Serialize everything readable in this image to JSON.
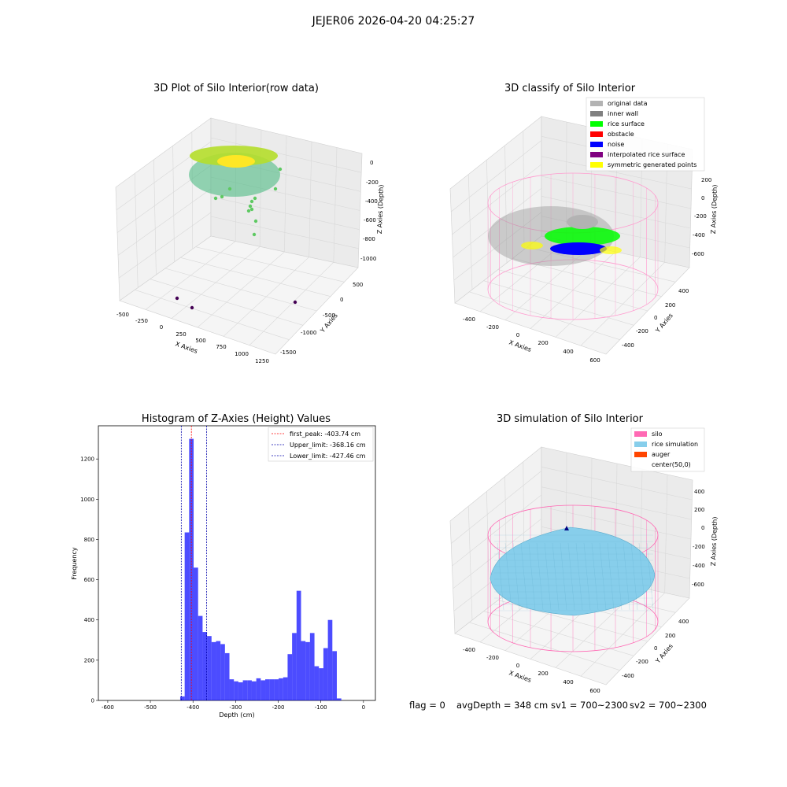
{
  "figure": {
    "suptitle": "JEJER06 2026-04-20 04:25:27",
    "status_line": {
      "flag": "flag = 0",
      "avg_depth": "avgDepth = 348 cm",
      "sv1": "sv1 = 700~2300",
      "sv2": "sv2 = 700~2300"
    }
  },
  "chart_data": [
    {
      "type": "scatter",
      "title": "3D Plot of Silo Interior(row data)",
      "xlabel": "X Axies",
      "ylabel": "Y Axies",
      "zlabel": "Z Axies (Depth)",
      "x_ticks": [
        "-500",
        "-250",
        "0",
        "250",
        "500",
        "750",
        "1000",
        "1250"
      ],
      "y_ticks": [
        "500",
        "0",
        "-500",
        "-1000",
        "-1500"
      ],
      "z_ticks": [
        "0",
        "-200",
        "-400",
        "-600",
        "-800",
        "-1000"
      ],
      "colormap": [
        "#440154",
        "#21918c",
        "#5ec962",
        "#fde725"
      ]
    },
    {
      "type": "scatter",
      "title": "3D classify of Silo Interior",
      "xlabel": "X Axies",
      "ylabel": "Y Axies",
      "zlabel": "Z Axies (Depth)",
      "x_ticks": [
        "-400",
        "-200",
        "0",
        "200",
        "400",
        "600"
      ],
      "y_ticks": [
        "400",
        "200",
        "0",
        "-200",
        "-400"
      ],
      "z_ticks": [
        "200",
        "0",
        "-200",
        "-400",
        "-600"
      ],
      "legend": [
        {
          "label": "original data",
          "color": "#b3b3b3"
        },
        {
          "label": "inner wall",
          "color": "#808080"
        },
        {
          "label": "rice surface",
          "color": "#00ff00"
        },
        {
          "label": "obstacle",
          "color": "#ff0000"
        },
        {
          "label": "noise",
          "color": "#0000ff"
        },
        {
          "label": "interpolated rice surface",
          "color": "#800080"
        },
        {
          "label": "symmetric generated points",
          "color": "#ffff00"
        }
      ]
    },
    {
      "type": "bar",
      "title": "Histogram of Z-Axies (Height) Values",
      "xlabel": "Depth (cm)",
      "ylabel": "Frequency",
      "xlim": [
        -622,
        28
      ],
      "ylim": [
        0,
        1365
      ],
      "x_ticks": [
        -600,
        -500,
        -400,
        -300,
        -200,
        -100,
        0
      ],
      "y_ticks": [
        0,
        200,
        400,
        600,
        800,
        1000,
        1200
      ],
      "bar_color": "#0000ff",
      "bin_edges_start": -430,
      "bin_width": 10.5,
      "values": [
        20,
        835,
        1300,
        660,
        420,
        340,
        320,
        290,
        295,
        280,
        235,
        105,
        95,
        90,
        100,
        100,
        95,
        110,
        100,
        105,
        105,
        105,
        110,
        115,
        230,
        335,
        545,
        295,
        290,
        335,
        170,
        160,
        260,
        400,
        245,
        10
      ],
      "vlines": [
        {
          "label": "first_peak: -403.74 cm",
          "x": -403.74,
          "color": "#ff0000"
        },
        {
          "label": "Upper_limit: -368.16 cm",
          "x": -368.16,
          "color": "#0000aa"
        },
        {
          "label": "Lower_limit: -427.46 cm",
          "x": -427.46,
          "color": "#0000aa"
        }
      ]
    },
    {
      "type": "area",
      "title": "3D simulation of Silo Interior",
      "xlabel": "X Axies",
      "ylabel": "Y Axies",
      "zlabel": "Z Axies (Depth)",
      "x_ticks": [
        "-400",
        "-200",
        "0",
        "200",
        "400",
        "600"
      ],
      "y_ticks": [
        "400",
        "200",
        "0",
        "-200",
        "-400"
      ],
      "z_ticks": [
        "400",
        "200",
        "0",
        "-200",
        "-400",
        "-600"
      ],
      "legend": [
        {
          "label": "silo",
          "color": "#ff69b4"
        },
        {
          "label": "rice simulation",
          "color": "#87ceeb"
        },
        {
          "label": "auger",
          "color": "#ff4500"
        },
        {
          "label": "center(50,0)",
          "color": "none"
        }
      ]
    }
  ]
}
